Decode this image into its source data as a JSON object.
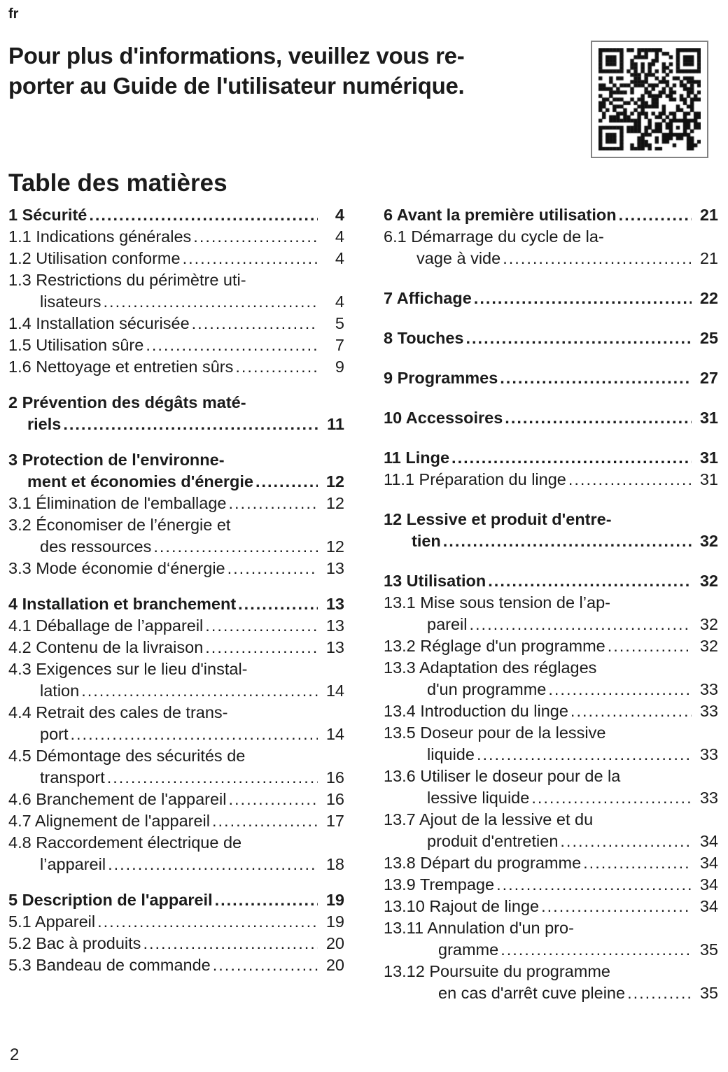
{
  "page": {
    "lang": "fr",
    "number": "2"
  },
  "intro": {
    "lines": [
      "Pour plus d'informations, veuillez vous re-",
      "porter au Guide de l'utilisateur numérique."
    ]
  },
  "qr": {
    "icon": "qr-code"
  },
  "toc": {
    "title": "Table des matières",
    "columns": {
      "left": [
        [
          {
            "bold": true,
            "lines": [
              "1 Sécurité"
            ],
            "page": "4"
          },
          {
            "bold": false,
            "lines": [
              "1.1 Indications générales"
            ],
            "page": "4"
          },
          {
            "bold": false,
            "lines": [
              "1.2 Utilisation conforme"
            ],
            "page": "4"
          },
          {
            "bold": false,
            "lines": [
              "1.3 Restrictions du périmètre uti-",
              "lisateurs"
            ],
            "page": "4",
            "ind": 45
          },
          {
            "bold": false,
            "lines": [
              "1.4 Installation sécurisée"
            ],
            "page": "5"
          },
          {
            "bold": false,
            "lines": [
              "1.5 Utilisation sûre"
            ],
            "page": "7"
          },
          {
            "bold": false,
            "lines": [
              "1.6 Nettoyage et entretien sûrs"
            ],
            "page": "9"
          }
        ],
        [
          {
            "bold": true,
            "lines": [
              "2 Prévention des dégâts maté-",
              "riels"
            ],
            "page": "11",
            "ind": 27
          }
        ],
        [
          {
            "bold": true,
            "lines": [
              "3 Protection de l'environne-",
              "ment et économies d'énergie"
            ],
            "page": "12",
            "ind": 27
          },
          {
            "bold": false,
            "lines": [
              "3.1 Élimination de l'emballage"
            ],
            "page": "12"
          },
          {
            "bold": false,
            "lines": [
              "3.2 Économiser de l’énergie et",
              "des ressources"
            ],
            "page": "12",
            "ind": 45
          },
          {
            "bold": false,
            "lines": [
              "3.3 Mode économie d‘énergie"
            ],
            "page": "13"
          }
        ],
        [
          {
            "bold": true,
            "lines": [
              "4 Installation et branchement"
            ],
            "page": "13"
          },
          {
            "bold": false,
            "lines": [
              "4.1 Déballage de l’appareil"
            ],
            "page": "13"
          },
          {
            "bold": false,
            "lines": [
              "4.2 Contenu de la livraison"
            ],
            "page": "13"
          },
          {
            "bold": false,
            "lines": [
              "4.3 Exigences sur le lieu d'instal-",
              "lation"
            ],
            "page": "14",
            "ind": 45
          },
          {
            "bold": false,
            "lines": [
              "4.4 Retrait des cales de trans-",
              "port"
            ],
            "page": "14",
            "ind": 45
          },
          {
            "bold": false,
            "lines": [
              "4.5 Démontage des sécurités de",
              "transport"
            ],
            "page": "16",
            "ind": 45
          },
          {
            "bold": false,
            "lines": [
              "4.6 Branchement de l'appareil"
            ],
            "page": "16"
          },
          {
            "bold": false,
            "lines": [
              "4.7 Alignement de l'appareil"
            ],
            "page": "17"
          },
          {
            "bold": false,
            "lines": [
              "4.8 Raccordement électrique de",
              "l’appareil"
            ],
            "page": "18",
            "ind": 45
          }
        ],
        [
          {
            "bold": true,
            "lines": [
              "5 Description de l'appareil"
            ],
            "page": "19"
          },
          {
            "bold": false,
            "lines": [
              "5.1 Appareil"
            ],
            "page": "19"
          },
          {
            "bold": false,
            "lines": [
              "5.2 Bac à produits"
            ],
            "page": "20"
          },
          {
            "bold": false,
            "lines": [
              "5.3 Bandeau de commande"
            ],
            "page": "20"
          }
        ]
      ],
      "right": [
        [
          {
            "bold": true,
            "lines": [
              "6 Avant la première utilisation"
            ],
            "page": "21"
          },
          {
            "bold": false,
            "lines": [
              "6.1 Démarrage du cycle de la-",
              "vage à vide"
            ],
            "page": "21",
            "ind": 47
          }
        ],
        [
          {
            "bold": true,
            "lines": [
              "7 Affichage"
            ],
            "page": "22"
          }
        ],
        [
          {
            "bold": true,
            "lines": [
              "8 Touches"
            ],
            "page": "25"
          }
        ],
        [
          {
            "bold": true,
            "lines": [
              "9 Programmes"
            ],
            "page": "27"
          }
        ],
        [
          {
            "bold": true,
            "lines": [
              "10 Accessoires"
            ],
            "page": "31"
          }
        ],
        [
          {
            "bold": true,
            "lines": [
              "11 Linge"
            ],
            "page": "31"
          },
          {
            "bold": false,
            "lines": [
              "11.1 Préparation du linge"
            ],
            "page": "31"
          }
        ],
        [
          {
            "bold": true,
            "lines": [
              "12 Lessive et produit d'entre-",
              "tien"
            ],
            "page": "32",
            "ind": 40
          }
        ],
        [
          {
            "bold": true,
            "lines": [
              "13 Utilisation"
            ],
            "page": "32"
          },
          {
            "bold": false,
            "lines": [
              "13.1 Mise sous tension de l’ap-",
              "pareil"
            ],
            "page": "32",
            "ind": 62
          },
          {
            "bold": false,
            "lines": [
              "13.2 Réglage d'un programme"
            ],
            "page": "32"
          },
          {
            "bold": false,
            "lines": [
              "13.3 Adaptation des réglages",
              "d'un programme"
            ],
            "page": "33",
            "ind": 62
          },
          {
            "bold": false,
            "lines": [
              "13.4 Introduction du linge"
            ],
            "page": "33"
          },
          {
            "bold": false,
            "lines": [
              "13.5 Doseur pour de la lessive",
              "liquide"
            ],
            "page": "33",
            "ind": 62
          },
          {
            "bold": false,
            "lines": [
              "13.6 Utiliser le doseur pour de la",
              "lessive liquide"
            ],
            "page": "33",
            "ind": 62
          },
          {
            "bold": false,
            "lines": [
              "13.7 Ajout de la lessive et du",
              "produit d'entretien"
            ],
            "page": "34",
            "ind": 62
          },
          {
            "bold": false,
            "lines": [
              "13.8 Départ du programme"
            ],
            "page": "34"
          },
          {
            "bold": false,
            "lines": [
              "13.9 Trempage"
            ],
            "page": "34"
          },
          {
            "bold": false,
            "lines": [
              "13.10 Rajout de linge"
            ],
            "page": "34"
          },
          {
            "bold": false,
            "lines": [
              "13.11 Annulation d'un pro-",
              "gramme"
            ],
            "page": "35",
            "ind": 78
          },
          {
            "bold": false,
            "lines": [
              "13.12 Poursuite du programme",
              "en cas d'arrêt cuve pleine"
            ],
            "page": "35",
            "ind": 78
          }
        ]
      ]
    }
  }
}
